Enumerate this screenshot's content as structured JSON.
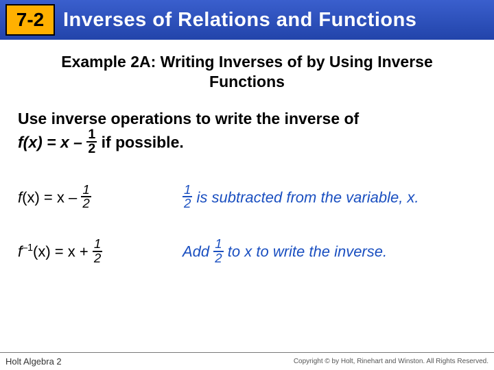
{
  "header": {
    "badge_text": "7-2",
    "title": "Inverses of Relations and Functions"
  },
  "example_title_line1": "Example 2A: Writing Inverses of by Using Inverse",
  "example_title_line2": "Functions",
  "instruction_part1": "Use inverse operations to write the inverse of",
  "instruction_fx": "f",
  "instruction_x": "(x) = x – ",
  "instruction_frac_num": "1",
  "instruction_frac_den": "2",
  "instruction_part2": " if possible.",
  "row1": {
    "lhs_f": "f",
    "lhs_rest": "(x) = x – ",
    "lhs_num": "1",
    "lhs_den": "2",
    "rhs_num": "1",
    "rhs_den": "2",
    "rhs_text": " is subtracted from the variable, x."
  },
  "row2": {
    "lhs_f": "f",
    "lhs_sup": "–1",
    "lhs_rest": "(x) = x + ",
    "lhs_num": "1",
    "lhs_den": "2",
    "rhs_pre": "Add ",
    "rhs_num": "1",
    "rhs_den": "2",
    "rhs_post": " to x to write the inverse."
  },
  "footer": {
    "left": "Holt Algebra 2",
    "right": "Copyright © by Holt, Rinehart and Winston. All Rights Reserved."
  },
  "colors": {
    "header_bg_top": "#3a5fcd",
    "header_bg_bottom": "#2244aa",
    "badge_bg": "#ffb000",
    "explain_text": "#1a4fc0"
  }
}
